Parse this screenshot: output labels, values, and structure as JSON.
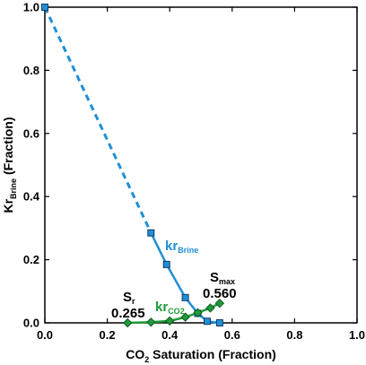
{
  "chart_data": {
    "type": "line",
    "xlabel": {
      "prefix": "CO",
      "sub": "2",
      "suffix": " Saturation (Fraction)"
    },
    "ylabel": {
      "prefix": "Kr",
      "sub": "Brine",
      "suffix": " (Fraction)"
    },
    "xlim": [
      0.0,
      1.0
    ],
    "ylim": [
      0.0,
      1.0
    ],
    "x_ticks": [
      "0.0",
      "0.2",
      "0.4",
      "0.6",
      "0.8",
      "1.0"
    ],
    "y_ticks": [
      "0.0",
      "0.2",
      "0.4",
      "0.6",
      "0.8",
      "1.0"
    ],
    "grid": false,
    "series": [
      {
        "name": "kr_Brine",
        "name_main": "kr",
        "name_sub": "Brine",
        "color": "#1f8fd6",
        "marker": "square",
        "extrapolation": {
          "x": [
            0.0,
            0.34
          ],
          "y": [
            1.0,
            0.285
          ],
          "style": "dashed"
        },
        "x": [
          0.0,
          0.34,
          0.39,
          0.45,
          0.49,
          0.52,
          0.56
        ],
        "y": [
          1.0,
          0.285,
          0.185,
          0.08,
          0.03,
          0.005,
          0.0
        ]
      },
      {
        "name": "kr_CO2",
        "name_main": "kr",
        "name_sub": "CO2",
        "color": "#1e9b3a",
        "marker": "diamond",
        "x": [
          0.265,
          0.34,
          0.4,
          0.45,
          0.49,
          0.53,
          0.56
        ],
        "y": [
          0.0,
          0.002,
          0.006,
          0.018,
          0.032,
          0.047,
          0.062
        ]
      }
    ],
    "annotations": [
      {
        "id": "sr",
        "main": "S",
        "sub": "r",
        "value": "0.265"
      },
      {
        "id": "smax",
        "main": "S",
        "sub": "max",
        "value": "0.560"
      }
    ]
  }
}
